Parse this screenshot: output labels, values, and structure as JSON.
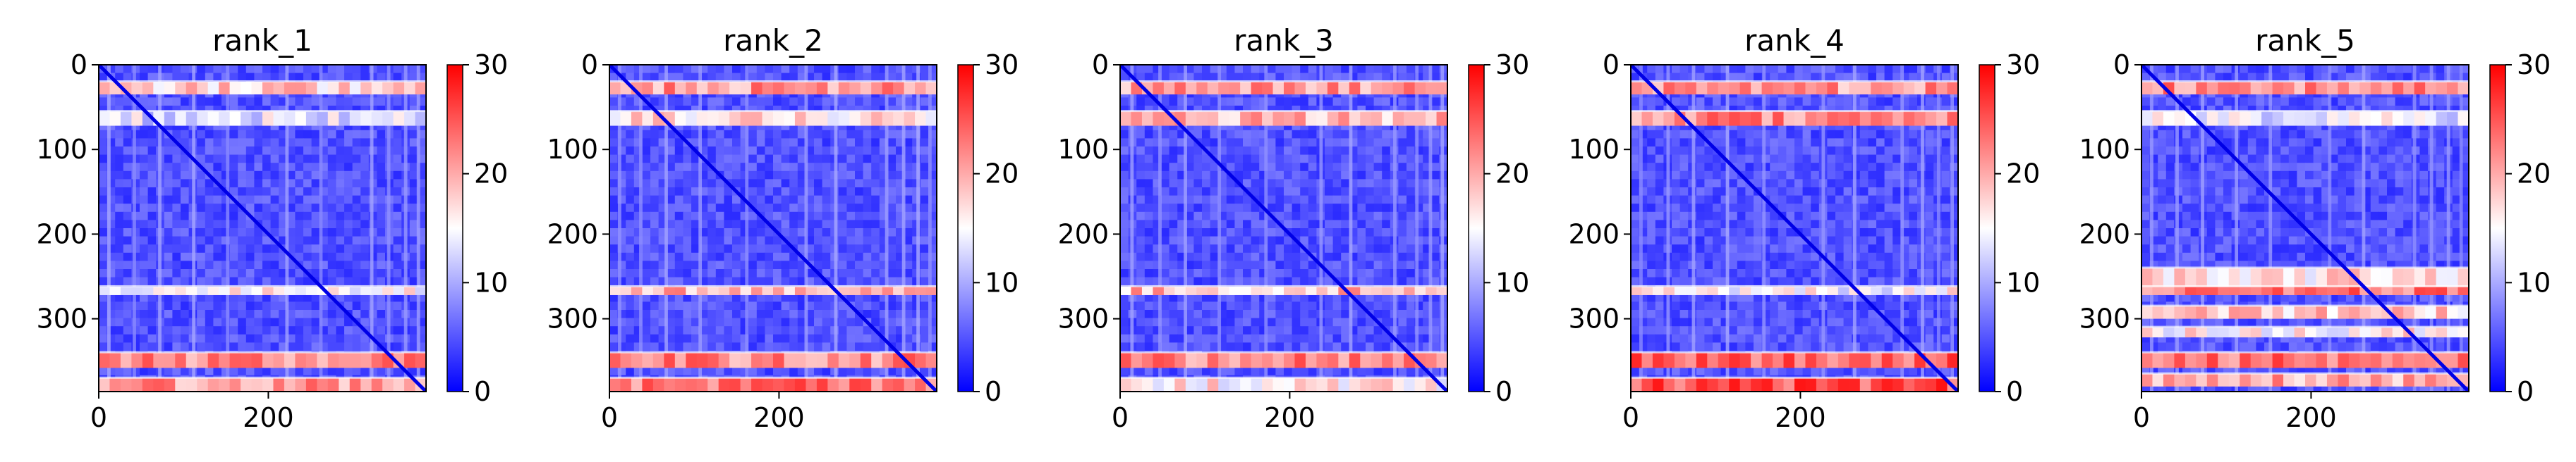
{
  "chart_data": [
    {
      "type": "heatmap",
      "title": "rank_1",
      "size": 386,
      "x_ticks": [
        0,
        200
      ],
      "y_ticks": [
        0,
        100,
        200,
        300
      ],
      "colorbar": {
        "ticks": [
          0,
          10,
          20,
          30
        ],
        "range": [
          0,
          30
        ],
        "colormap": "bwr"
      },
      "bands": [
        {
          "y": [
            20,
            35
          ],
          "level": 18
        },
        {
          "y": [
            55,
            72
          ],
          "level": 13
        },
        {
          "y": [
            262,
            272
          ],
          "level": 16
        },
        {
          "y": [
            340,
            358
          ],
          "level": 22
        },
        {
          "y": [
            370,
            386
          ],
          "level": 21
        }
      ],
      "stripes_x": [
        10,
        40,
        70,
        110,
        150,
        220,
        260,
        320,
        340,
        360,
        375
      ]
    },
    {
      "type": "heatmap",
      "title": "rank_2",
      "size": 386,
      "x_ticks": [
        0,
        200
      ],
      "y_ticks": [
        0,
        100,
        200,
        300
      ],
      "colorbar": {
        "ticks": [
          0,
          10,
          20,
          30
        ],
        "range": [
          0,
          30
        ],
        "colormap": "bwr"
      },
      "bands": [
        {
          "y": [
            20,
            35
          ],
          "level": 21
        },
        {
          "y": [
            55,
            72
          ],
          "level": 17
        },
        {
          "y": [
            262,
            272
          ],
          "level": 20
        },
        {
          "y": [
            340,
            358
          ],
          "level": 22
        },
        {
          "y": [
            370,
            386
          ],
          "level": 23
        }
      ],
      "stripes_x": [
        10,
        35,
        65,
        105,
        160,
        230,
        265,
        325,
        345,
        362,
        376
      ]
    },
    {
      "type": "heatmap",
      "title": "rank_3",
      "size": 386,
      "x_ticks": [
        0,
        200
      ],
      "y_ticks": [
        0,
        100,
        200,
        300
      ],
      "colorbar": {
        "ticks": [
          0,
          10,
          20,
          30
        ],
        "range": [
          0,
          30
        ],
        "colormap": "bwr"
      },
      "bands": [
        {
          "y": [
            20,
            35
          ],
          "level": 21
        },
        {
          "y": [
            55,
            72
          ],
          "level": 19
        },
        {
          "y": [
            262,
            272
          ],
          "level": 19
        },
        {
          "y": [
            340,
            358
          ],
          "level": 22
        },
        {
          "y": [
            370,
            386
          ],
          "level": 16
        }
      ],
      "stripes_x": [
        12,
        45,
        75,
        115,
        170,
        235,
        270,
        322,
        348,
        364,
        378
      ]
    },
    {
      "type": "heatmap",
      "title": "rank_4",
      "size": 386,
      "x_ticks": [
        0,
        200
      ],
      "y_ticks": [
        0,
        100,
        200,
        300
      ],
      "colorbar": {
        "ticks": [
          0,
          10,
          20,
          30
        ],
        "range": [
          0,
          30
        ],
        "colormap": "bwr"
      },
      "bands": [
        {
          "y": [
            20,
            35
          ],
          "level": 21
        },
        {
          "y": [
            55,
            72
          ],
          "level": 22
        },
        {
          "y": [
            262,
            272
          ],
          "level": 15
        },
        {
          "y": [
            340,
            358
          ],
          "level": 24
        },
        {
          "y": [
            370,
            386
          ],
          "level": 25
        }
      ],
      "stripes_x": [
        10,
        42,
        72,
        112,
        155,
        225,
        262,
        318,
        342,
        361,
        377
      ]
    },
    {
      "type": "heatmap",
      "title": "rank_5",
      "size": 386,
      "x_ticks": [
        0,
        200
      ],
      "y_ticks": [
        0,
        100,
        200,
        300
      ],
      "colorbar": {
        "ticks": [
          0,
          10,
          20,
          30
        ],
        "range": [
          0,
          30
        ],
        "colormap": "bwr"
      },
      "bands": [
        {
          "y": [
            20,
            35
          ],
          "level": 22
        },
        {
          "y": [
            55,
            72
          ],
          "level": 14
        },
        {
          "y": [
            240,
            262
          ],
          "level": 17
        },
        {
          "y": [
            262,
            272
          ],
          "level": 23
        },
        {
          "y": [
            285,
            300
          ],
          "level": 18
        },
        {
          "y": [
            310,
            322
          ],
          "level": 16
        },
        {
          "y": [
            340,
            358
          ],
          "level": 23
        },
        {
          "y": [
            365,
            380
          ],
          "level": 20
        }
      ],
      "stripes_x": [
        10,
        40,
        70,
        110,
        150,
        220,
        260,
        320,
        340,
        360,
        375
      ]
    }
  ]
}
